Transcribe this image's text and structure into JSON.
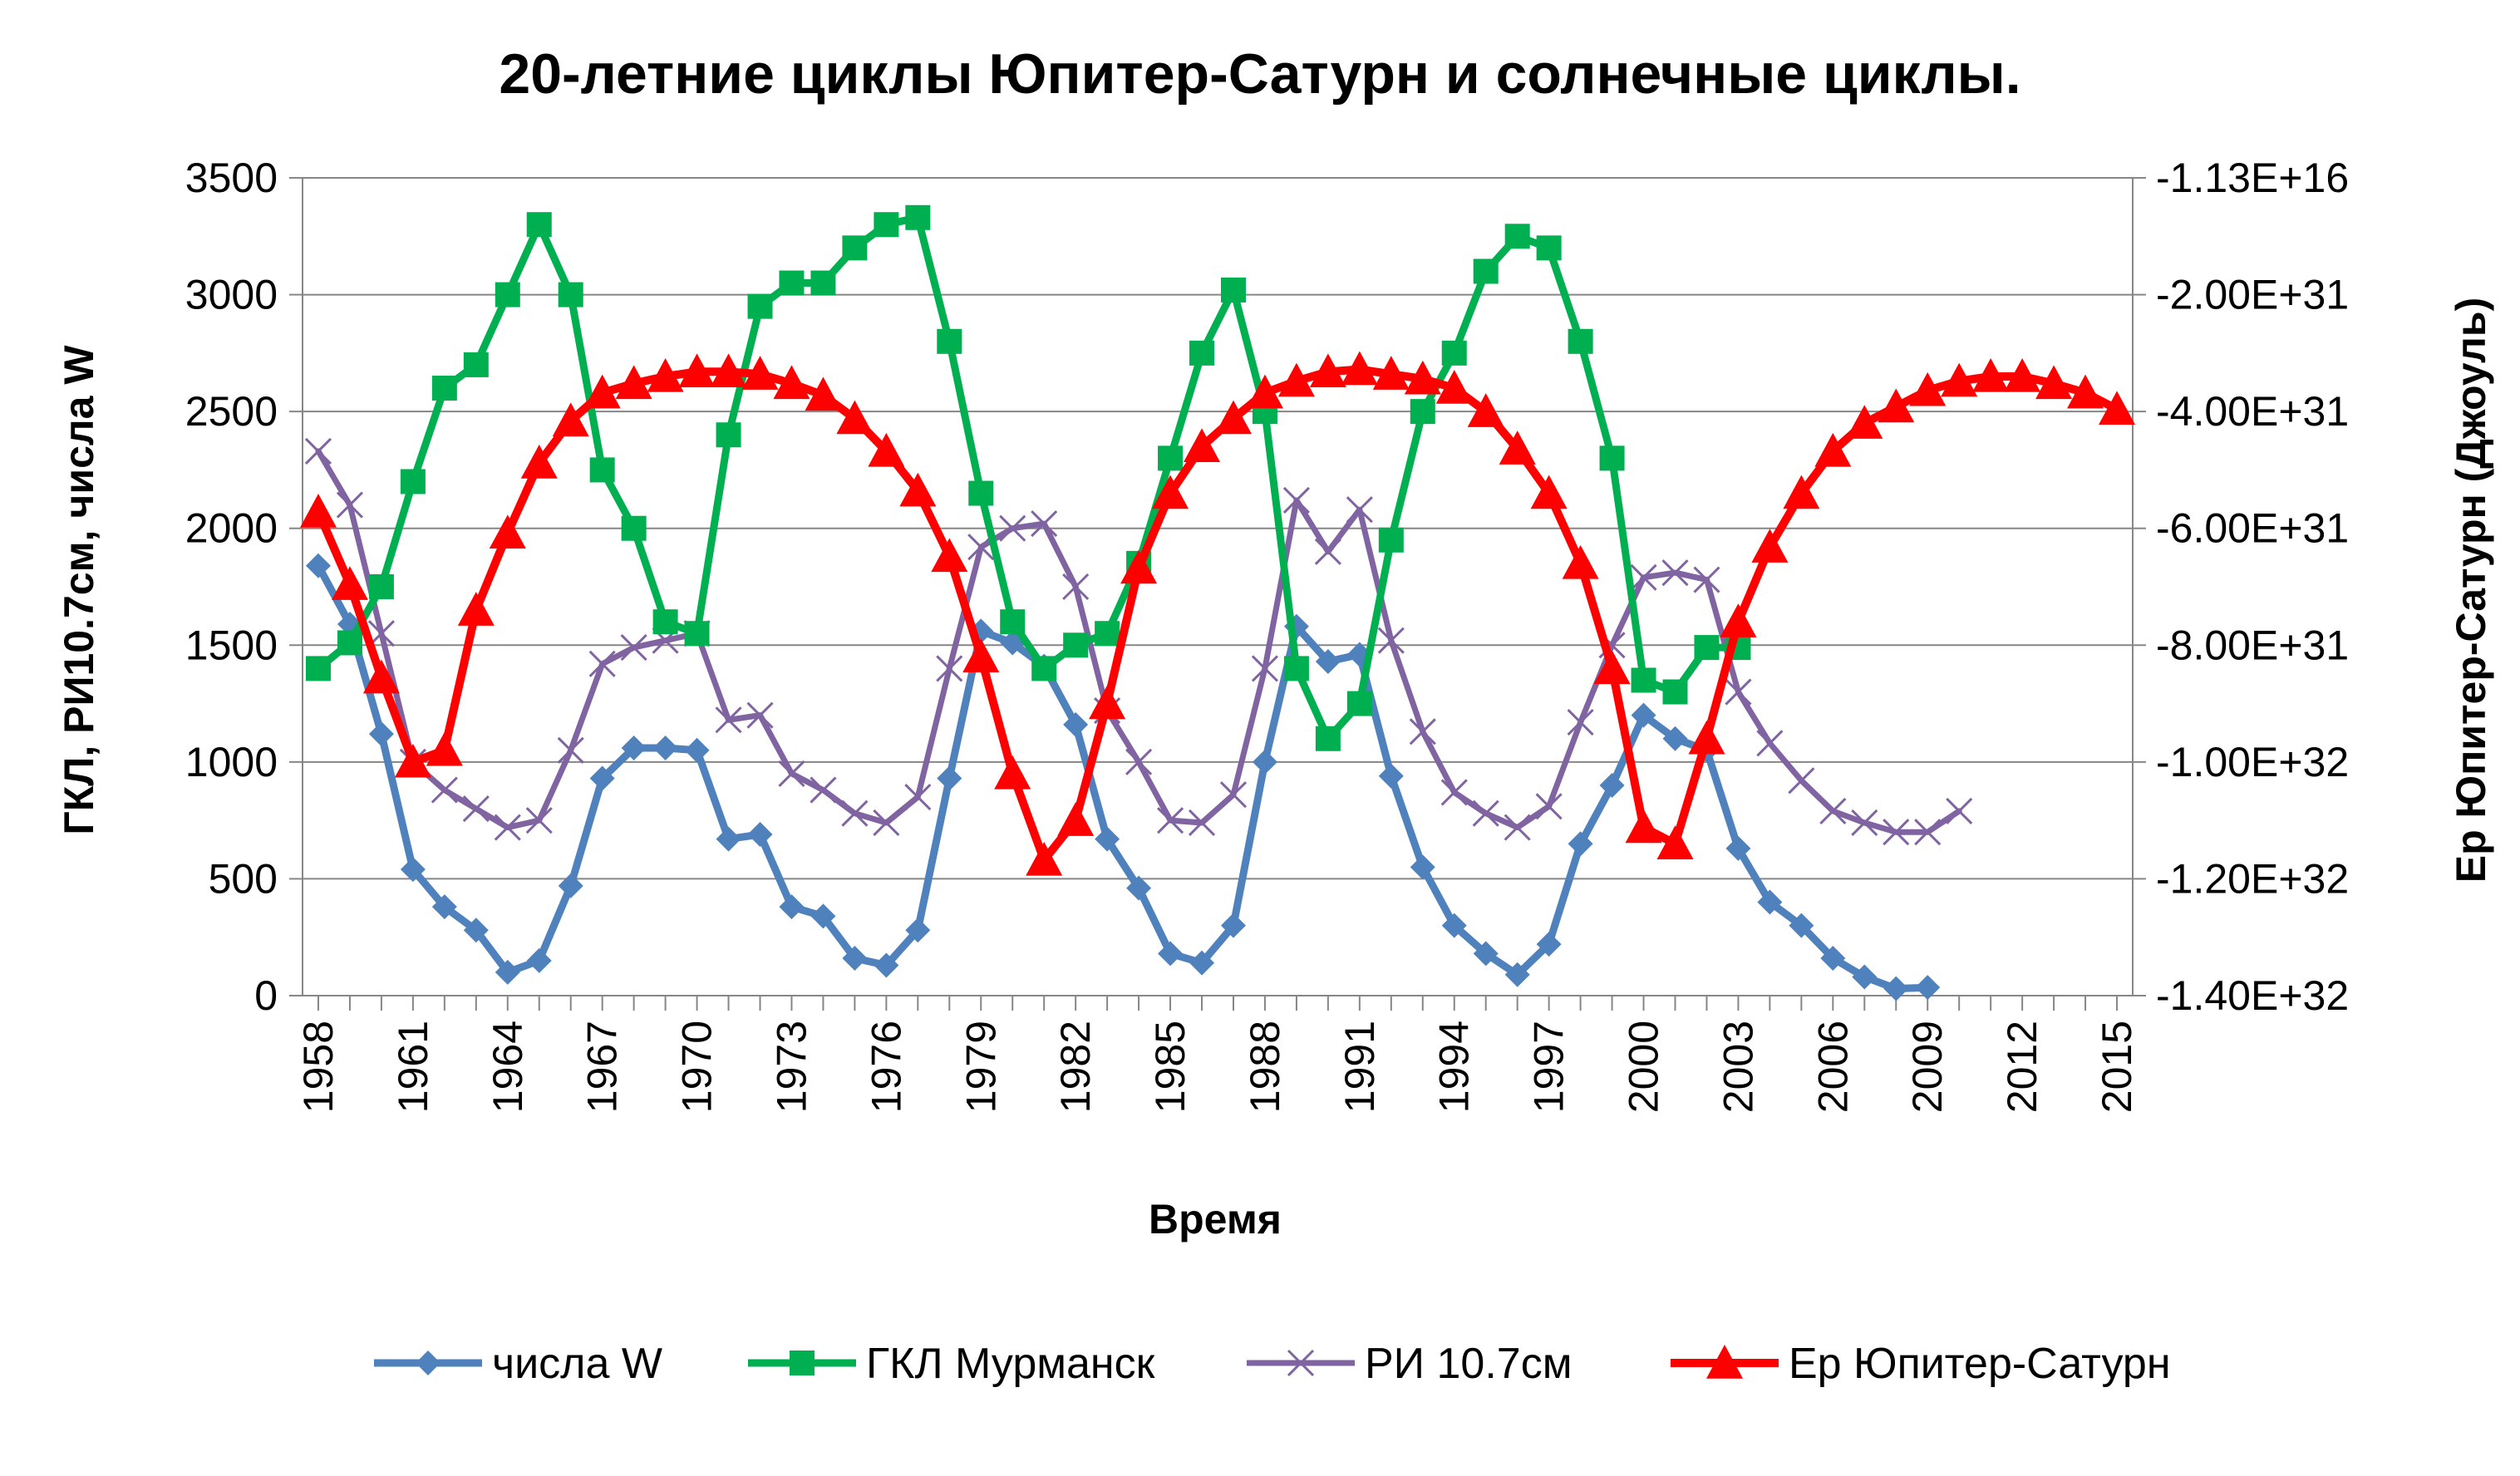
{
  "chart_data": {
    "type": "line",
    "title": "20-летние циклы Юпитер-Сатурн и солнечные циклы.",
    "xlabel": "Время",
    "ylabel_left": "ГКЛ, РИ10.7см, числа W",
    "ylabel_right": "Ер Юпитер-Сатурн (Джоуль)",
    "ylim_left": [
      0,
      3500
    ],
    "left_ticks": [
      "0",
      "500",
      "1000",
      "1500",
      "2000",
      "2500",
      "3000",
      "3500"
    ],
    "right_ticks": [
      "-1.40E+32",
      "-1.20E+32",
      "-1.00E+32",
      "-8.00E+31",
      "-6.00E+31",
      "-4.00E+31",
      "-2.00E+31",
      "-1.13E+16"
    ],
    "x_ticks": [
      "1958",
      "1961",
      "1964",
      "1967",
      "1970",
      "1973",
      "1976",
      "1979",
      "1982",
      "1985",
      "1988",
      "1991",
      "1994",
      "1997",
      "2000",
      "2003",
      "2006",
      "2009",
      "2012",
      "2015"
    ],
    "xlim": [
      1957.5,
      2015.5
    ],
    "grid": true,
    "legend_position": "bottom",
    "series": [
      {
        "name": "числа W",
        "color": "#4f81bd",
        "marker": "diamond",
        "x": [
          1958,
          1959,
          1960,
          1961,
          1962,
          1963,
          1964,
          1965,
          1966,
          1967,
          1968,
          1969,
          1970,
          1971,
          1972,
          1973,
          1974,
          1975,
          1976,
          1977,
          1978,
          1979,
          1980,
          1981,
          1982,
          1983,
          1984,
          1985,
          1986,
          1987,
          1988,
          1989,
          1990,
          1991,
          1992,
          1993,
          1994,
          1995,
          1996,
          1997,
          1998,
          1999,
          2000,
          2001,
          2002,
          2003,
          2004,
          2005,
          2006,
          2007,
          2008,
          2009
        ],
        "y": [
          1840,
          1590,
          1120,
          540,
          380,
          280,
          100,
          150,
          470,
          930,
          1060,
          1060,
          1050,
          670,
          690,
          380,
          340,
          160,
          130,
          280,
          930,
          1560,
          1510,
          1410,
          1160,
          670,
          460,
          180,
          140,
          300,
          1000,
          1580,
          1430,
          1460,
          940,
          550,
          300,
          180,
          90,
          220,
          650,
          900,
          1200,
          1100,
          1050,
          630,
          400,
          300,
          160,
          80,
          30,
          35
        ]
      },
      {
        "name": "ГКЛ Мурманск",
        "color": "#00b050",
        "marker": "square",
        "x": [
          1958,
          1959,
          1960,
          1961,
          1962,
          1963,
          1964,
          1965,
          1966,
          1967,
          1968,
          1969,
          1970,
          1971,
          1972,
          1973,
          1974,
          1975,
          1976,
          1977,
          1978,
          1979,
          1980,
          1981,
          1982,
          1983,
          1984,
          1985,
          1986,
          1987,
          1988,
          1989,
          1990,
          1991,
          1992,
          1993,
          1994,
          1995,
          1996,
          1997,
          1998,
          1999,
          2000,
          2001,
          2002,
          2003
        ],
        "y": [
          1400,
          1510,
          1750,
          2200,
          2600,
          2700,
          3000,
          3300,
          3000,
          2250,
          2000,
          1600,
          1550,
          2400,
          2950,
          3050,
          3050,
          3200,
          3300,
          3330,
          2800,
          2150,
          1600,
          1400,
          1500,
          1550,
          1850,
          2300,
          2750,
          3020,
          2500,
          1400,
          1100,
          1250,
          1950,
          2500,
          2750,
          3100,
          3250,
          3200,
          2800,
          2300,
          1350,
          1300,
          1490,
          1490
        ]
      },
      {
        "name": "РИ 10.7см",
        "color": "#8064a2",
        "marker": "x",
        "x": [
          1958,
          1959,
          1960,
          1961,
          1962,
          1963,
          1964,
          1965,
          1966,
          1967,
          1968,
          1969,
          1970,
          1971,
          1972,
          1973,
          1974,
          1975,
          1976,
          1977,
          1978,
          1979,
          1980,
          1981,
          1982,
          1983,
          1984,
          1985,
          1986,
          1987,
          1988,
          1989,
          1990,
          1991,
          1992,
          1993,
          1994,
          1995,
          1996,
          1997,
          1998,
          1999,
          2000,
          2001,
          2002,
          2003,
          2004,
          2005,
          2006,
          2007,
          2008,
          2009,
          2010
        ],
        "y": [
          2330,
          2100,
          1550,
          1000,
          880,
          800,
          720,
          750,
          1050,
          1420,
          1490,
          1520,
          1550,
          1180,
          1200,
          950,
          880,
          780,
          740,
          850,
          1400,
          1920,
          2000,
          2020,
          1750,
          1220,
          1000,
          750,
          740,
          860,
          1400,
          2120,
          1900,
          2080,
          1520,
          1130,
          870,
          780,
          720,
          810,
          1170,
          1500,
          1790,
          1810,
          1780,
          1300,
          1080,
          920,
          790,
          740,
          700,
          700,
          790
        ]
      },
      {
        "name": "Ер Юпитер-Сатурн",
        "color": "#ff0000",
        "marker": "triangle",
        "x": [
          1958,
          1959,
          1960,
          1961,
          1962,
          1963,
          1964,
          1965,
          1966,
          1967,
          1968,
          1969,
          1970,
          1971,
          1972,
          1973,
          1974,
          1975,
          1976,
          1977,
          1978,
          1979,
          1980,
          1981,
          1982,
          1983,
          1984,
          1985,
          1986,
          1987,
          1988,
          1989,
          1990,
          1991,
          1992,
          1993,
          1994,
          1995,
          1996,
          1997,
          1998,
          1999,
          2000,
          2001,
          2002,
          2003,
          2004,
          2005,
          2006,
          2007,
          2008,
          2009,
          2010,
          2011,
          2012,
          2013,
          2014,
          2015
        ],
        "y": [
          2070,
          1760,
          1360,
          1000,
          1050,
          1650,
          1980,
          2280,
          2460,
          2580,
          2620,
          2650,
          2670,
          2670,
          2660,
          2620,
          2570,
          2470,
          2330,
          2160,
          1880,
          1450,
          950,
          580,
          750,
          1250,
          1830,
          2150,
          2350,
          2470,
          2580,
          2630,
          2670,
          2680,
          2660,
          2640,
          2600,
          2500,
          2340,
          2150,
          1850,
          1400,
          720,
          650,
          1100,
          1600,
          1920,
          2150,
          2330,
          2450,
          2520,
          2590,
          2630,
          2650,
          2650,
          2620,
          2580,
          2510
        ]
      }
    ]
  }
}
